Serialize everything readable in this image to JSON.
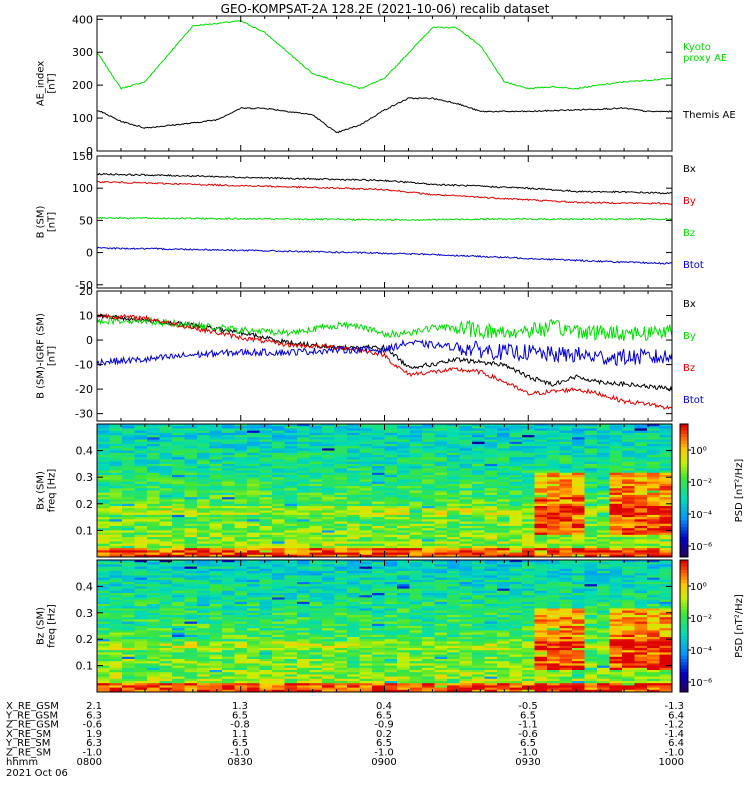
{
  "title": "GEO-KOMPSAT-2A 128.2E (2021-10-06) recalib dataset",
  "x_ticks": [
    "0800",
    "0830",
    "0900",
    "0930",
    "1000"
  ],
  "ephemeris": {
    "rows": [
      {
        "label": "X_RE_GSM",
        "values": [
          "2.1",
          "1.3",
          "0.4",
          "-0.5",
          "-1.3"
        ]
      },
      {
        "label": "Y_RE_GSM",
        "values": [
          "6.3",
          "6.5",
          "6.5",
          "6.5",
          "6.4"
        ]
      },
      {
        "label": "Z_RE_GSM",
        "values": [
          "-0.6",
          "-0.8",
          "-0.9",
          "-1.1",
          "-1.2"
        ]
      },
      {
        "label": "X_RE_SM",
        "values": [
          "1.9",
          "1.1",
          "0.2",
          "-0.6",
          "-1.4"
        ]
      },
      {
        "label": "Y_RE_SM",
        "values": [
          "6.3",
          "6.5",
          "6.5",
          "6.5",
          "6.4"
        ]
      },
      {
        "label": "Z_RE_SM",
        "values": [
          "-1.0",
          "-1.0",
          "-1.0",
          "-1.0",
          "-1.0"
        ]
      },
      {
        "label": "hhmm",
        "values": [
          "0800",
          "0830",
          "0900",
          "0930",
          "1000"
        ]
      }
    ],
    "date": "2021 Oct 06"
  },
  "colors": {
    "black": "#000000",
    "red": "#e00000",
    "green": "#00dd00",
    "blue": "#0000cc"
  },
  "chart_data": [
    {
      "type": "line",
      "ylabel": "AE_index\n[nT]",
      "ylim": [
        0,
        410
      ],
      "yticks": [
        0,
        100,
        200,
        300,
        400
      ],
      "xlim": [
        0,
        120
      ],
      "series": [
        {
          "name": "Kyoto\nproxy AE",
          "color": "#00dd00",
          "x": [
            0,
            5,
            10,
            20,
            30,
            35,
            45,
            55,
            60,
            70,
            75,
            80,
            85,
            90,
            95,
            100,
            105,
            110,
            115,
            120
          ],
          "y": [
            300,
            190,
            210,
            380,
            395,
            360,
            235,
            190,
            220,
            375,
            375,
            320,
            210,
            190,
            195,
            190,
            200,
            210,
            215,
            220
          ]
        },
        {
          "name": "Themis AE",
          "color": "#000000",
          "x": [
            0,
            5,
            10,
            20,
            25,
            30,
            35,
            45,
            50,
            55,
            60,
            65,
            70,
            75,
            80,
            90,
            100,
            110,
            115,
            120
          ],
          "y": [
            125,
            90,
            70,
            85,
            95,
            130,
            130,
            110,
            55,
            80,
            125,
            160,
            160,
            145,
            120,
            120,
            125,
            130,
            120,
            120
          ]
        }
      ]
    },
    {
      "type": "line",
      "ylabel": "B (SM)\n[nT]",
      "ylim": [
        -55,
        150
      ],
      "yticks": [
        -50,
        0,
        50,
        100,
        150
      ],
      "xlim": [
        0,
        120
      ],
      "series": [
        {
          "name": "Bx",
          "color": "#000000",
          "x": [
            0,
            20,
            40,
            60,
            70,
            80,
            90,
            100,
            110,
            120
          ],
          "y": [
            122,
            119,
            115,
            112,
            106,
            103,
            100,
            95,
            94,
            92
          ]
        },
        {
          "name": "By",
          "color": "#e00000",
          "x": [
            0,
            20,
            40,
            60,
            70,
            80,
            90,
            100,
            110,
            120
          ],
          "y": [
            110,
            106,
            102,
            98,
            90,
            86,
            82,
            78,
            77,
            76
          ]
        },
        {
          "name": "Bz",
          "color": "#00dd00",
          "x": [
            0,
            20,
            40,
            60,
            70,
            80,
            90,
            100,
            110,
            120
          ],
          "y": [
            54,
            53,
            52,
            51,
            51,
            52,
            52,
            52,
            52,
            52
          ]
        },
        {
          "name": "Btot",
          "color": "#0000cc",
          "x": [
            0,
            20,
            40,
            60,
            70,
            80,
            90,
            100,
            110,
            120
          ],
          "y": [
            7,
            5,
            2,
            -1,
            -3,
            -6,
            -9,
            -12,
            -15,
            -17
          ]
        }
      ]
    },
    {
      "type": "line",
      "ylabel": "B (SM)-IGRF (SM)\n[nT]",
      "ylim": [
        -33,
        20
      ],
      "yticks": [
        -30,
        -20,
        -10,
        0,
        10,
        20
      ],
      "xlim": [
        0,
        120
      ],
      "series": [
        {
          "name": "Bx",
          "color": "#000000",
          "x": [
            0,
            10,
            20,
            30,
            40,
            50,
            55,
            60,
            62,
            65,
            70,
            75,
            80,
            85,
            90,
            95,
            100,
            105,
            110,
            115,
            120
          ],
          "y": [
            10,
            8,
            6,
            3,
            -1,
            -3,
            -3,
            -3,
            -6,
            -11,
            -10,
            -8,
            -9,
            -10,
            -15,
            -18,
            -15,
            -17,
            -18,
            -19,
            -20
          ]
        },
        {
          "name": "By",
          "color": "#00dd00",
          "x": [
            0,
            10,
            20,
            30,
            40,
            50,
            55,
            60,
            65,
            70,
            75,
            80,
            85,
            90,
            95,
            100,
            105,
            110,
            115,
            120
          ],
          "y": [
            8,
            8,
            6,
            4,
            3,
            6,
            6,
            2,
            3,
            5,
            5,
            4,
            3,
            4,
            5,
            4,
            3,
            3,
            3,
            4
          ]
        },
        {
          "name": "Bz",
          "color": "#e00000",
          "x": [
            0,
            10,
            20,
            30,
            40,
            50,
            55,
            60,
            62,
            65,
            70,
            75,
            80,
            85,
            90,
            95,
            100,
            105,
            110,
            115,
            120
          ],
          "y": [
            10,
            9,
            5,
            1,
            -2,
            -3,
            -4,
            -6,
            -10,
            -14,
            -13,
            -12,
            -13,
            -17,
            -22,
            -21,
            -20,
            -22,
            -25,
            -26,
            -28
          ]
        },
        {
          "name": "Btot",
          "color": "#0000cc",
          "x": [
            0,
            10,
            20,
            30,
            40,
            50,
            55,
            60,
            65,
            70,
            75,
            80,
            85,
            90,
            95,
            100,
            105,
            110,
            115,
            120
          ],
          "y": [
            -9,
            -8,
            -6,
            -5,
            -5,
            -4,
            -4,
            -4,
            -1,
            -2,
            -3,
            -4,
            -5,
            -5,
            -6,
            -6,
            -7,
            -7,
            -7,
            -7
          ]
        }
      ]
    },
    {
      "type": "heatmap",
      "ylabel": "Bx (SM)\nfreq [Hz]",
      "ylim": [
        0,
        0.5
      ],
      "yticks": [
        0.1,
        0.2,
        0.3,
        0.4
      ],
      "xlim": [
        0,
        120
      ],
      "colorbar_label": "PSD [nT²/Hz]",
      "colorbar_ticks": [
        "10⁰",
        "10⁻²",
        "10⁻⁴",
        "10⁻⁶"
      ],
      "high_power_intervals_min": [
        [
          92,
          103
        ],
        [
          108,
          120
        ]
      ],
      "high_power_freq_hz": [
        0.1,
        0.25
      ]
    },
    {
      "type": "heatmap",
      "ylabel": "Bz (SM)\nfreq [Hz]",
      "ylim": [
        0,
        0.5
      ],
      "yticks": [
        0.1,
        0.2,
        0.3,
        0.4
      ],
      "xlim": [
        0,
        120
      ],
      "colorbar_label": "PSD [nT²/Hz]",
      "colorbar_ticks": [
        "10⁰",
        "10⁻²",
        "10⁻⁴",
        "10⁻⁶"
      ],
      "high_power_intervals_min": [
        [
          92,
          103
        ],
        [
          108,
          120
        ]
      ],
      "high_power_freq_hz": [
        0.1,
        0.25
      ]
    }
  ]
}
